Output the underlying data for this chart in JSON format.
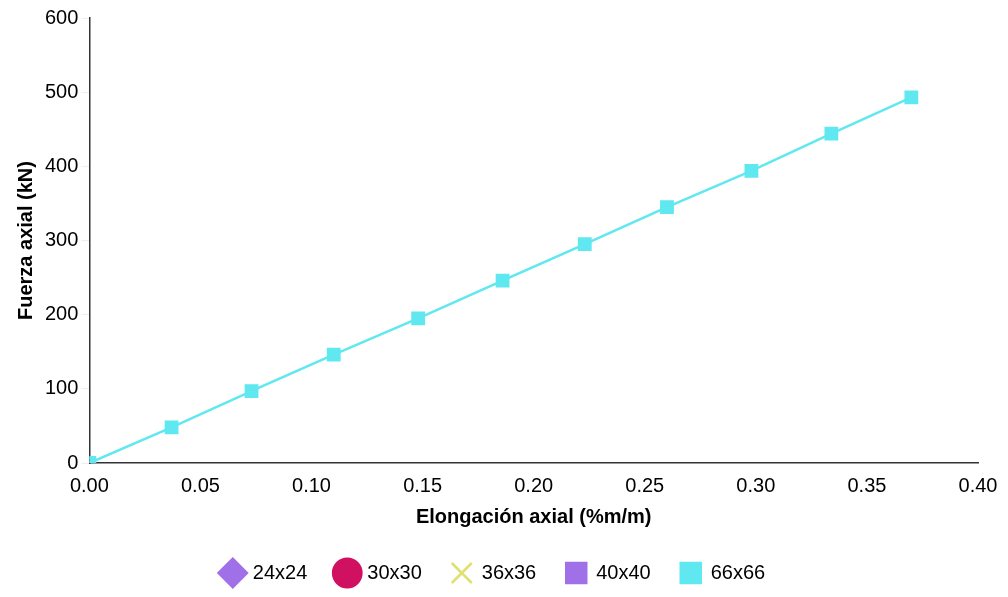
{
  "chart_data": {
    "type": "line",
    "xlabel": "Elongación axial (%m/m)",
    "ylabel": "Fuerza axial (kN)",
    "x": [
      0,
      0.037,
      0.073,
      0.11,
      0.148,
      0.186,
      0.223,
      0.26,
      0.298,
      0.334,
      0.37
    ],
    "xlim": [
      0,
      0.4
    ],
    "xticks": [
      {
        "value": 0,
        "label": "0.00"
      },
      {
        "value": 0.05,
        "label": "0.05"
      },
      {
        "value": 0.1,
        "label": "0.10"
      },
      {
        "value": 0.15,
        "label": "0.15"
      },
      {
        "value": 0.2,
        "label": "0.20"
      },
      {
        "value": 0.25,
        "label": "0.25"
      },
      {
        "value": 0.3,
        "label": "0.30"
      },
      {
        "value": 0.35,
        "label": "0.35"
      },
      {
        "value": 0.4,
        "label": "0.40"
      }
    ],
    "ylim": [
      0,
      600
    ],
    "yticks": [
      0,
      100,
      200,
      300,
      400,
      500,
      600
    ],
    "legend": "bottom",
    "series": [
      {
        "name": "24x24",
        "color": "#a070e8",
        "marker": "diamond",
        "values": [
          null,
          null,
          null,
          null,
          null,
          null,
          null,
          null,
          null,
          null,
          null
        ]
      },
      {
        "name": "30x30",
        "color": "#d01060",
        "marker": "circle",
        "values": [
          null,
          null,
          null,
          null,
          null,
          null,
          null,
          null,
          null,
          null,
          null
        ]
      },
      {
        "name": "36x36",
        "color": "#e0e070",
        "marker": "cross",
        "values": [
          null,
          null,
          null,
          null,
          null,
          null,
          null,
          null,
          null,
          null,
          null
        ]
      },
      {
        "name": "40x40",
        "color": "#a070e8",
        "marker": "square",
        "values": [
          null,
          null,
          null,
          null,
          null,
          null,
          null,
          null,
          null,
          null,
          null
        ]
      },
      {
        "name": "66x66",
        "color": "#60e8f0",
        "marker": "square",
        "values": [
          0,
          48,
          97,
          146,
          195,
          246,
          295,
          345,
          394,
          444,
          493
        ]
      }
    ]
  }
}
